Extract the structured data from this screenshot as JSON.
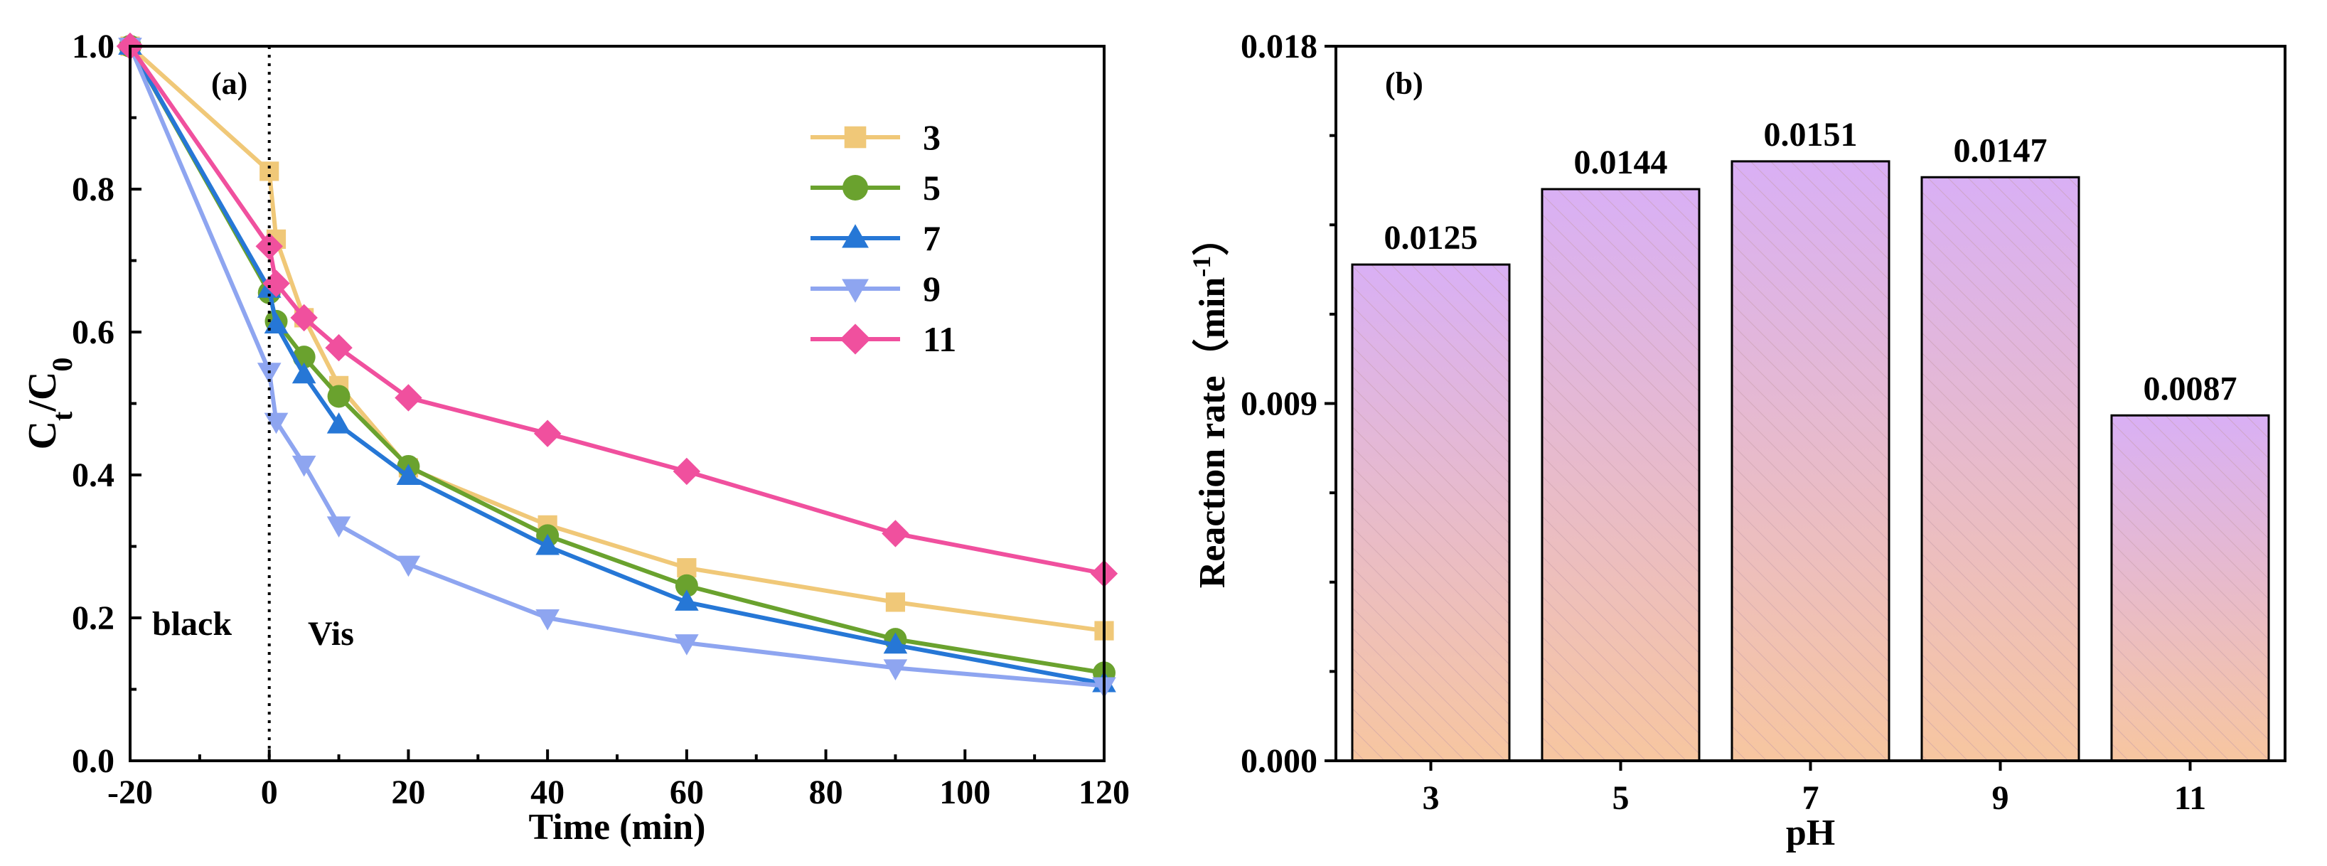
{
  "chart_data": [
    {
      "type": "line",
      "panel_label": "(a)",
      "xlabel": "Time (min)",
      "ylabel_main": "C",
      "ylabel_sub1": "t",
      "ylabel_sep": "/C",
      "ylabel_sub2": "0",
      "xlim": [
        -20,
        120
      ],
      "ylim": [
        0.0,
        1.0
      ],
      "xticks": [
        -20,
        0,
        20,
        40,
        60,
        80,
        100,
        120
      ],
      "xtick_labels": [
        "-20",
        "0",
        "20",
        "40",
        "60",
        "80",
        "100",
        "120"
      ],
      "yticks": [
        0.0,
        0.2,
        0.4,
        0.6,
        0.8,
        1.0
      ],
      "ytick_labels": [
        "0.0",
        "0.2",
        "0.4",
        "0.6",
        "0.8",
        "1.0"
      ],
      "divider_x": 0,
      "annotations": [
        {
          "text": "black",
          "x": -17,
          "y": 0.18
        },
        {
          "text": "Vis",
          "x": 6,
          "y": 0.17
        }
      ],
      "legend_position": "top-right",
      "series": [
        {
          "name": "3",
          "color": "#F0C878",
          "marker": "square",
          "x": [
            -20,
            0,
            1,
            5,
            10,
            20,
            40,
            60,
            90,
            120
          ],
          "y": [
            1.0,
            0.825,
            0.73,
            0.62,
            0.525,
            0.41,
            0.33,
            0.27,
            0.222,
            0.182
          ]
        },
        {
          "name": "5",
          "color": "#6AA22E",
          "marker": "circle",
          "x": [
            -20,
            0,
            1,
            5,
            10,
            20,
            40,
            60,
            90,
            120
          ],
          "y": [
            1.0,
            0.655,
            0.615,
            0.565,
            0.51,
            0.412,
            0.315,
            0.245,
            0.17,
            0.123
          ]
        },
        {
          "name": "7",
          "color": "#2677D6",
          "marker": "triangle-up",
          "x": [
            -20,
            0,
            1,
            5,
            10,
            20,
            40,
            60,
            90,
            120
          ],
          "y": [
            1.0,
            0.66,
            0.61,
            0.54,
            0.47,
            0.398,
            0.3,
            0.222,
            0.162,
            0.108
          ]
        },
        {
          "name": "9",
          "color": "#8EA5F0",
          "marker": "triangle-down",
          "x": [
            -20,
            0,
            1,
            5,
            10,
            20,
            40,
            60,
            90,
            120
          ],
          "y": [
            1.0,
            0.545,
            0.475,
            0.415,
            0.33,
            0.275,
            0.2,
            0.165,
            0.13,
            0.105
          ]
        },
        {
          "name": "11",
          "color": "#F0509E",
          "marker": "diamond",
          "x": [
            -20,
            0,
            1,
            5,
            10,
            20,
            40,
            60,
            90,
            120
          ],
          "y": [
            1.0,
            0.72,
            0.668,
            0.62,
            0.578,
            0.508,
            0.458,
            0.405,
            0.318,
            0.262
          ]
        }
      ]
    },
    {
      "type": "bar",
      "panel_label": "(b)",
      "xlabel": "pH",
      "ylabel_main": "Reaction rate（min",
      "ylabel_sup": "-1",
      "ylabel_end": "）",
      "categories": [
        "3",
        "5",
        "7",
        "9",
        "11"
      ],
      "values": [
        0.0125,
        0.0144,
        0.0151,
        0.0147,
        0.0087
      ],
      "data_labels": [
        "0.0125",
        "0.0144",
        "0.0151",
        "0.0147",
        "0.0087"
      ],
      "ylim": [
        0.0,
        0.018
      ],
      "yticks": [
        0.0,
        0.009,
        0.018
      ],
      "ytick_labels": [
        "0.000",
        "0.009",
        "0.018"
      ],
      "bar_gradient": {
        "top": "#D9B0F5",
        "bottom": "#F7C6A0"
      },
      "hatch_color": "#C49AA8"
    }
  ]
}
